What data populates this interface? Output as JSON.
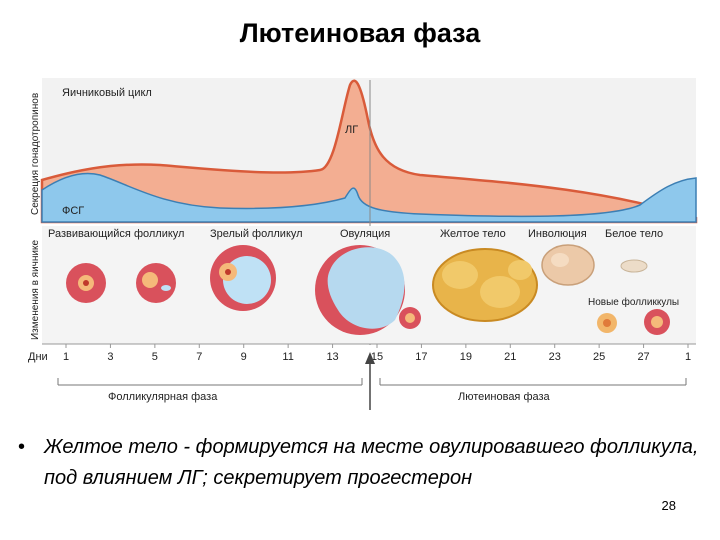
{
  "title": "Лютеиновая фаза",
  "axis": {
    "top_label": "Секреция гонадотропинов",
    "bottom_label": "Изменения в яичнике",
    "days_label": "Дни",
    "days": [
      "1",
      "3",
      "5",
      "7",
      "9",
      "11",
      "13",
      "15",
      "17",
      "19",
      "21",
      "23",
      "25",
      "27",
      "1"
    ]
  },
  "hormones": {
    "panel_title": "Яичниковый цикл",
    "lh": "ЛГ",
    "fsh": "ФСГ"
  },
  "stages": {
    "developing": "Развивающийся фолликул",
    "mature": "Зрелый фолликул",
    "ovulation": "Овуляция",
    "corpus_luteum": "Желтое тело",
    "involution": "Инволюция",
    "corpus_albicans": "Белое тело",
    "new_follicles": "Новые фолликкулы"
  },
  "phases": {
    "follicular": "Фолликулярная фаза",
    "luteal": "Лютеиновая фаза"
  },
  "colors": {
    "lh_fill": "#f0a98c",
    "lh_line": "#d95b3a",
    "fsh_fill": "#8ec8ec",
    "fsh_line": "#3c7fb4",
    "follicle": "#d9515c",
    "corpus_luteum": "#e8b44a"
  },
  "bullet": {
    "text": "Желтое тело - формируется на месте овулировавшего фолликула, под влиянием ЛГ; секретирует прогестерон"
  },
  "page_number": "28"
}
